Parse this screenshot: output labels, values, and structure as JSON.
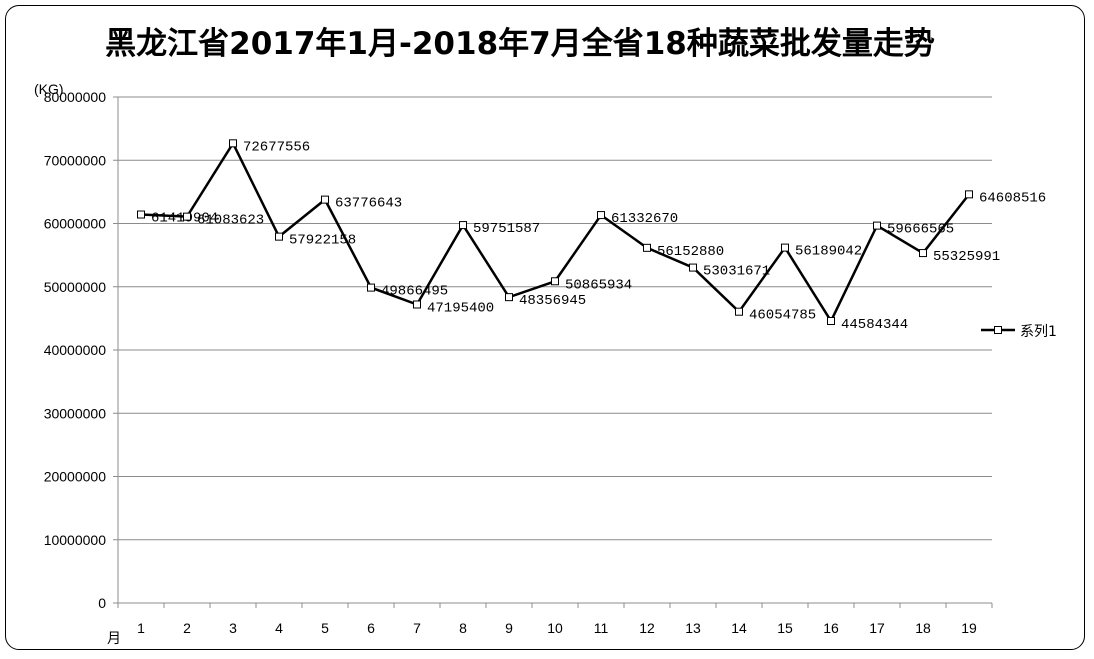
{
  "chart_data": {
    "type": "line",
    "title": "黑龙江省2017年1月-2018年7月全省18种蔬菜批发量走势",
    "ylabel": "(KG)",
    "xlabel": "月",
    "ylim": [
      0,
      80000000
    ],
    "y_ticks": [
      "0",
      "10000000",
      "20000000",
      "30000000",
      "40000000",
      "50000000",
      "60000000",
      "70000000",
      "80000000"
    ],
    "categories": [
      "1",
      "2",
      "3",
      "4",
      "5",
      "6",
      "7",
      "8",
      "9",
      "10",
      "11",
      "12",
      "13",
      "14",
      "15",
      "16",
      "17",
      "18",
      "19"
    ],
    "series": [
      {
        "name": "系列1",
        "color": "#000000",
        "values": [
          61419904,
          61083623,
          72677556,
          57922158,
          63776643,
          49866495,
          47195400,
          59751587,
          48356945,
          50865934,
          61332670,
          56152880,
          53031671,
          46054785,
          56189042,
          44584344,
          59666565,
          55325991,
          64608516
        ],
        "labels": [
          "61419904",
          "61083623",
          "72677556",
          "57922158",
          "63776643",
          "49866495",
          "47195400",
          "59751587",
          "48356945",
          "50865934",
          "61332670",
          "56152880",
          "53031671",
          "46054785",
          "56189042",
          "44584344",
          "59666565",
          "55325991",
          "64608516"
        ]
      }
    ],
    "grid": true,
    "legend": "right"
  }
}
